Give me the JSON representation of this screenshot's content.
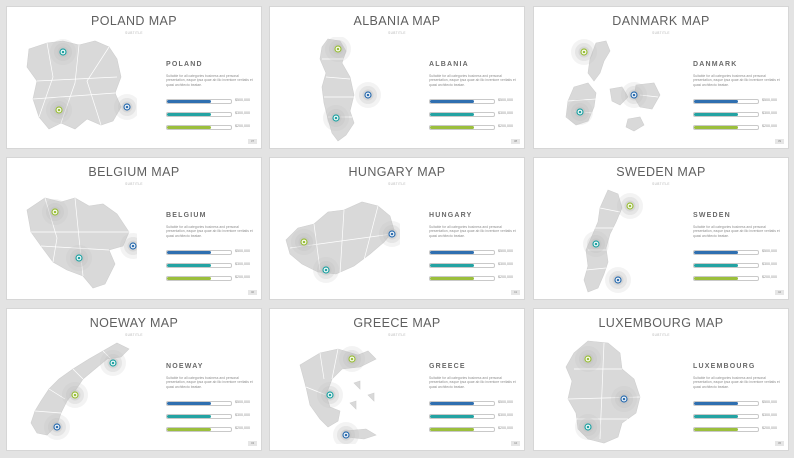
{
  "colors": {
    "background": "#e3e3e3",
    "slide": "#ffffff",
    "map_fill": "#d9d9d9",
    "map_stroke": "#ffffff",
    "blue": "#2f6fb0",
    "teal": "#23a3a3",
    "green": "#9bbf3c",
    "title": "#5f5f5f"
  },
  "slides": [
    {
      "title": "POLAND MAP",
      "subtitle": "SUBTITLE",
      "country": "POLAND",
      "description": "Suitable for all categories business and personal presentation, eaque ipsa quae ab illo inventore veritatis et quasi architecto beatae.",
      "bars": [
        {
          "value": "$500,000",
          "fill": 0.68
        },
        {
          "value": "$300,000",
          "fill": 0.68
        },
        {
          "value": "$200,000",
          "fill": 0.68
        }
      ],
      "page": "37"
    },
    {
      "title": "ALBANIA MAP",
      "subtitle": "SUBTITLE",
      "country": "ALBANIA",
      "description": "Suitable for all categories business and personal presentation, eaque ipsa quae ab illo inventore veritatis et quasi architecto beatae.",
      "bars": [
        {
          "value": "$500,000",
          "fill": 0.68
        },
        {
          "value": "$300,000",
          "fill": 0.68
        },
        {
          "value": "$200,000",
          "fill": 0.68
        }
      ],
      "page": "38"
    },
    {
      "title": "DANMARK MAP",
      "subtitle": "SUBTITLE",
      "country": "DANMARK",
      "description": "Suitable for all categories business and personal presentation, eaque ipsa quae ab illo inventore veritatis et quasi architecto beatae.",
      "bars": [
        {
          "value": "$500,000",
          "fill": 0.68
        },
        {
          "value": "$300,000",
          "fill": 0.68
        },
        {
          "value": "$200,000",
          "fill": 0.68
        }
      ],
      "page": "39"
    },
    {
      "title": "BELGIUM MAP",
      "subtitle": "SUBTITLE",
      "country": "BELGIUM",
      "description": "Suitable for all categories business and personal presentation, eaque ipsa quae ab illo inventore veritatis et quasi architecto beatae.",
      "bars": [
        {
          "value": "$500,000",
          "fill": 0.68
        },
        {
          "value": "$300,000",
          "fill": 0.68
        },
        {
          "value": "$200,000",
          "fill": 0.68
        }
      ],
      "page": "40"
    },
    {
      "title": "HUNGARY MAP",
      "subtitle": "SUBTITLE",
      "country": "HUNGARY",
      "description": "Suitable for all categories business and personal presentation, eaque ipsa quae ab illo inventore veritatis et quasi architecto beatae.",
      "bars": [
        {
          "value": "$500,000",
          "fill": 0.68
        },
        {
          "value": "$300,000",
          "fill": 0.68
        },
        {
          "value": "$200,000",
          "fill": 0.68
        }
      ],
      "page": "41"
    },
    {
      "title": "SWEDEN MAP",
      "subtitle": "SUBTITLE",
      "country": "SWEDEN",
      "description": "Suitable for all categories business and personal presentation, eaque ipsa quae ab illo inventore veritatis et quasi architecto beatae.",
      "bars": [
        {
          "value": "$500,000",
          "fill": 0.68
        },
        {
          "value": "$300,000",
          "fill": 0.68
        },
        {
          "value": "$200,000",
          "fill": 0.68
        }
      ],
      "page": "42"
    },
    {
      "title": "NOEWAY MAP",
      "subtitle": "SUBTITLE",
      "country": "NOEWAY",
      "description": "Suitable for all categories business and personal presentation, eaque ipsa quae ab illo inventore veritatis et quasi architecto beatae.",
      "bars": [
        {
          "value": "$500,000",
          "fill": 0.68
        },
        {
          "value": "$300,000",
          "fill": 0.68
        },
        {
          "value": "$200,000",
          "fill": 0.68
        }
      ],
      "page": "43"
    },
    {
      "title": "GREECE MAP",
      "subtitle": "SUBTITLE",
      "country": "GREECE",
      "description": "Suitable for all categories business and personal presentation, eaque ipsa quae ab illo inventore veritatis et quasi architecto beatae.",
      "bars": [
        {
          "value": "$500,000",
          "fill": 0.68
        },
        {
          "value": "$300,000",
          "fill": 0.68
        },
        {
          "value": "$200,000",
          "fill": 0.68
        }
      ],
      "page": "44"
    },
    {
      "title": "LUXEMBOURG MAP",
      "subtitle": "SUBTITLE",
      "country": "LUXEMBOURG",
      "description": "Suitable for all categories business and personal presentation, eaque ipsa quae ab illo inventore veritatis et quasi architecto beatae.",
      "bars": [
        {
          "value": "$500,000",
          "fill": 0.68
        },
        {
          "value": "$300,000",
          "fill": 0.68
        },
        {
          "value": "$200,000",
          "fill": 0.68
        }
      ],
      "page": "45"
    }
  ]
}
